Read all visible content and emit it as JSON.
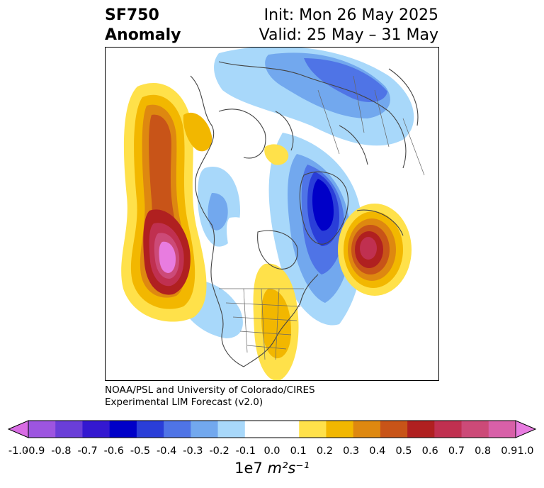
{
  "header": {
    "title_line1": "SF750",
    "title_line2": "Anomaly",
    "init_label": "Init: Mon 26 May 2025",
    "valid_label": "Valid: 25 May – 31 May"
  },
  "credit": {
    "line1": "NOAA/PSL and University of Colorado/CIRES",
    "line2": "Experimental LIM Forecast (v2.0)"
  },
  "colorbar": {
    "ticks": [
      "-1.0",
      "-0.9",
      "-0.8",
      "-0.7",
      "-0.6",
      "-0.5",
      "-0.4",
      "-0.3",
      "-0.2",
      "-0.1",
      "0.0",
      "0.1",
      "0.2",
      "0.3",
      "0.4",
      "0.5",
      "0.6",
      "0.7",
      "0.8",
      "0.9",
      "1.0"
    ],
    "colors": [
      "#9d55e0",
      "#6a3ed8",
      "#3418d0",
      "#0000c8",
      "#2a3ed8",
      "#4f74e6",
      "#72a8ee",
      "#a8d8fa",
      "#ffffff",
      "#ffffff",
      "#ffe14a",
      "#f2b700",
      "#de8810",
      "#c85418",
      "#b02020",
      "#c03050",
      "#cc4a78",
      "#d860a8"
    ],
    "min_color": "#d86ce4",
    "max_color": "#e87ce0",
    "unit_prefix": "1e7 ",
    "unit_math": "m²s⁻¹"
  },
  "map": {
    "projection": "polar-stereographic",
    "field": "SF750 anomaly"
  }
}
